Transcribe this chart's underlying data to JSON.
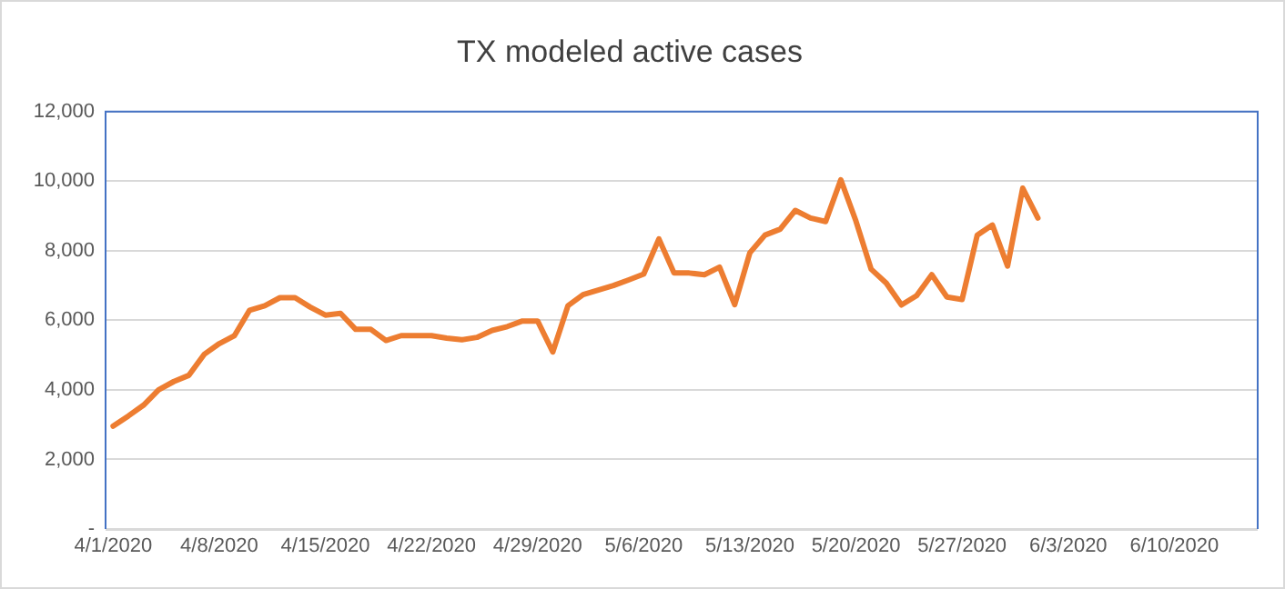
{
  "chart_data": {
    "type": "line",
    "title": "TX modeled active cases",
    "x": [
      "2020-04-01",
      "2020-04-02",
      "2020-04-03",
      "2020-04-04",
      "2020-04-05",
      "2020-04-06",
      "2020-04-07",
      "2020-04-08",
      "2020-04-09",
      "2020-04-10",
      "2020-04-11",
      "2020-04-12",
      "2020-04-13",
      "2020-04-14",
      "2020-04-15",
      "2020-04-16",
      "2020-04-17",
      "2020-04-18",
      "2020-04-19",
      "2020-04-20",
      "2020-04-21",
      "2020-04-22",
      "2020-04-23",
      "2020-04-24",
      "2020-04-25",
      "2020-04-26",
      "2020-04-27",
      "2020-04-28",
      "2020-04-29",
      "2020-04-30",
      "2020-05-01",
      "2020-05-02",
      "2020-05-03",
      "2020-05-04",
      "2020-05-05",
      "2020-05-06",
      "2020-05-07",
      "2020-05-08",
      "2020-05-09",
      "2020-05-10",
      "2020-05-11",
      "2020-05-12",
      "2020-05-13",
      "2020-05-14",
      "2020-05-15",
      "2020-05-16",
      "2020-05-17",
      "2020-05-18",
      "2020-05-19",
      "2020-05-20",
      "2020-05-21",
      "2020-05-22",
      "2020-05-23",
      "2020-05-24",
      "2020-05-25",
      "2020-05-26",
      "2020-05-27",
      "2020-05-28",
      "2020-05-29",
      "2020-05-30",
      "2020-05-31",
      "2020-06-01"
    ],
    "series": [
      {
        "color": "#ed7d31",
        "values": [
          2960,
          3250,
          3560,
          4000,
          4240,
          4420,
          5020,
          5330,
          5560,
          6290,
          6420,
          6650,
          6650,
          6380,
          6150,
          6200,
          5740,
          5740,
          5420,
          5560,
          5560,
          5560,
          5490,
          5440,
          5510,
          5710,
          5820,
          5980,
          5980,
          5090,
          6420,
          6740,
          6870,
          7000,
          7160,
          7330,
          8340,
          7360,
          7360,
          7310,
          7530,
          6450,
          7940,
          8450,
          8620,
          9160,
          8940,
          8840,
          10040,
          8850,
          7470,
          7070,
          6440,
          6710,
          7310,
          6670,
          6600,
          8450,
          8740,
          7560,
          9800,
          8940
        ]
      }
    ],
    "xlim": [
      "2020-03-31T12:00",
      "2020-06-15T12:00"
    ],
    "xticks": [
      {
        "value": "2020-04-01",
        "label": "4/1/2020"
      },
      {
        "value": "2020-04-08",
        "label": "4/8/2020"
      },
      {
        "value": "2020-04-15",
        "label": "4/15/2020"
      },
      {
        "value": "2020-04-22",
        "label": "4/22/2020"
      },
      {
        "value": "2020-04-29",
        "label": "4/29/2020"
      },
      {
        "value": "2020-05-06",
        "label": "5/6/2020"
      },
      {
        "value": "2020-05-13",
        "label": "5/13/2020"
      },
      {
        "value": "2020-05-20",
        "label": "5/20/2020"
      },
      {
        "value": "2020-05-27",
        "label": "5/27/2020"
      },
      {
        "value": "2020-06-03",
        "label": "6/3/2020"
      },
      {
        "value": "2020-06-10",
        "label": "6/10/2020"
      }
    ],
    "ylim": [
      0,
      12000
    ],
    "yticks": [
      {
        "value": 0,
        "label": "-"
      },
      {
        "value": 2000,
        "label": "2,000"
      },
      {
        "value": 4000,
        "label": "4,000"
      },
      {
        "value": 6000,
        "label": "6,000"
      },
      {
        "value": 8000,
        "label": "8,000"
      },
      {
        "value": 10000,
        "label": "10,000"
      },
      {
        "value": 12000,
        "label": "12,000"
      }
    ],
    "grid": "y",
    "legend": false,
    "marker": "none",
    "line_style": "solid"
  }
}
